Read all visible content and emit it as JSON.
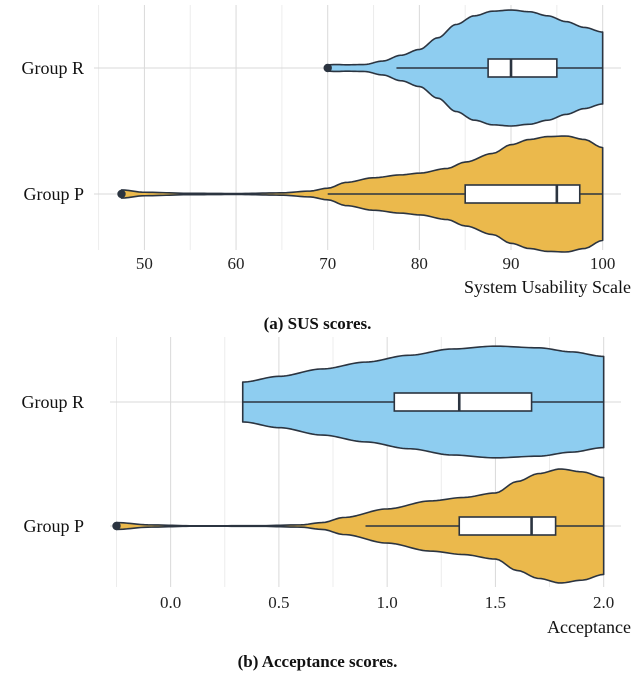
{
  "chart_data": [
    {
      "type": "violin",
      "caption": "(a) SUS scores.",
      "xlabel": "System Usability Scale",
      "xlim": [
        44.5,
        102
      ],
      "xticks": [
        50,
        60,
        70,
        80,
        90,
        100
      ],
      "tick_labels": [
        "50",
        "60",
        "70",
        "80",
        "90",
        "100"
      ],
      "minor_grid": [
        45,
        55,
        65,
        75,
        85,
        95
      ],
      "grid": true,
      "categories": [
        "Group R",
        "Group P"
      ],
      "series": [
        {
          "name": "Group R",
          "color": "#8ecdf0",
          "violin_range": [
            70,
            100
          ],
          "density_profile": [
            [
              70,
              0.055
            ],
            [
              71,
              0.06
            ],
            [
              72,
              0.055
            ],
            [
              74,
              0.06
            ],
            [
              76,
              0.12
            ],
            [
              78,
              0.22
            ],
            [
              80,
              0.32
            ],
            [
              82,
              0.52
            ],
            [
              84,
              0.75
            ],
            [
              86,
              0.9
            ],
            [
              88,
              0.98
            ],
            [
              90,
              1.0
            ],
            [
              92,
              0.97
            ],
            [
              94,
              0.9
            ],
            [
              96,
              0.8
            ],
            [
              98,
              0.7
            ],
            [
              100,
              0.62
            ]
          ],
          "box": {
            "whisker_low": 77.5,
            "q1": 87.5,
            "median": 90,
            "q3": 95,
            "whisker_high": 100
          },
          "outliers": [
            70
          ]
        },
        {
          "name": "Group P",
          "color": "#ebb94c",
          "violin_range": [
            47.5,
            100
          ],
          "density_profile": [
            [
              47.5,
              0.07
            ],
            [
              50,
              0.03
            ],
            [
              55,
              0.012
            ],
            [
              60,
              0.008
            ],
            [
              65,
              0.02
            ],
            [
              68,
              0.05
            ],
            [
              70,
              0.1
            ],
            [
              72,
              0.2
            ],
            [
              75,
              0.28
            ],
            [
              78,
              0.33
            ],
            [
              80,
              0.36
            ],
            [
              83,
              0.44
            ],
            [
              85,
              0.55
            ],
            [
              88,
              0.7
            ],
            [
              90,
              0.85
            ],
            [
              92,
              0.94
            ],
            [
              94,
              0.99
            ],
            [
              96,
              1.0
            ],
            [
              98,
              0.94
            ],
            [
              100,
              0.8
            ]
          ],
          "box": {
            "whisker_low": 70,
            "q1": 85,
            "median": 95,
            "q3": 97.5,
            "whisker_high": 100
          },
          "outliers": [
            47.5
          ]
        }
      ]
    },
    {
      "type": "violin",
      "caption": "(b) Acceptance scores.",
      "xlabel": "Acceptance",
      "xlim": [
        -0.28,
        2.08
      ],
      "xticks": [
        0.0,
        0.5,
        1.0,
        1.5,
        2.0
      ],
      "tick_labels": [
        "0.0",
        "0.5",
        "1.0",
        "1.5",
        "2.0"
      ],
      "minor_grid": [
        -0.25,
        0.25,
        0.75,
        1.25,
        1.75
      ],
      "grid": true,
      "categories": [
        "Group R",
        "Group P"
      ],
      "series": [
        {
          "name": "Group R",
          "color": "#8ecdf0",
          "violin_range": [
            0.333,
            2.0
          ],
          "density_profile": [
            [
              0.333,
              0.35
            ],
            [
              0.5,
              0.45
            ],
            [
              0.7,
              0.58
            ],
            [
              0.9,
              0.7
            ],
            [
              1.1,
              0.82
            ],
            [
              1.3,
              0.93
            ],
            [
              1.5,
              0.98
            ],
            [
              1.7,
              0.95
            ],
            [
              1.85,
              0.88
            ],
            [
              2.0,
              0.8
            ]
          ],
          "box": {
            "whisker_low": 0.333,
            "q1": 1.033,
            "median": 1.333,
            "q3": 1.667,
            "whisker_high": 2.0
          },
          "outliers": []
        },
        {
          "name": "Group P",
          "color": "#ebb94c",
          "violin_range": [
            -0.25,
            2.0
          ],
          "density_profile": [
            [
              -0.25,
              0.06
            ],
            [
              -0.1,
              0.02
            ],
            [
              0.1,
              0.004
            ],
            [
              0.4,
              0.005
            ],
            [
              0.6,
              0.02
            ],
            [
              0.7,
              0.06
            ],
            [
              0.8,
              0.15
            ],
            [
              1.0,
              0.3
            ],
            [
              1.2,
              0.44
            ],
            [
              1.35,
              0.5
            ],
            [
              1.5,
              0.58
            ],
            [
              1.6,
              0.78
            ],
            [
              1.7,
              0.92
            ],
            [
              1.8,
              1.0
            ],
            [
              1.9,
              0.95
            ],
            [
              2.0,
              0.85
            ]
          ],
          "box": {
            "whisker_low": 0.9,
            "q1": 1.333,
            "median": 1.667,
            "q3": 1.778,
            "whisker_high": 2.0
          },
          "outliers": [
            -0.25
          ]
        }
      ]
    }
  ]
}
